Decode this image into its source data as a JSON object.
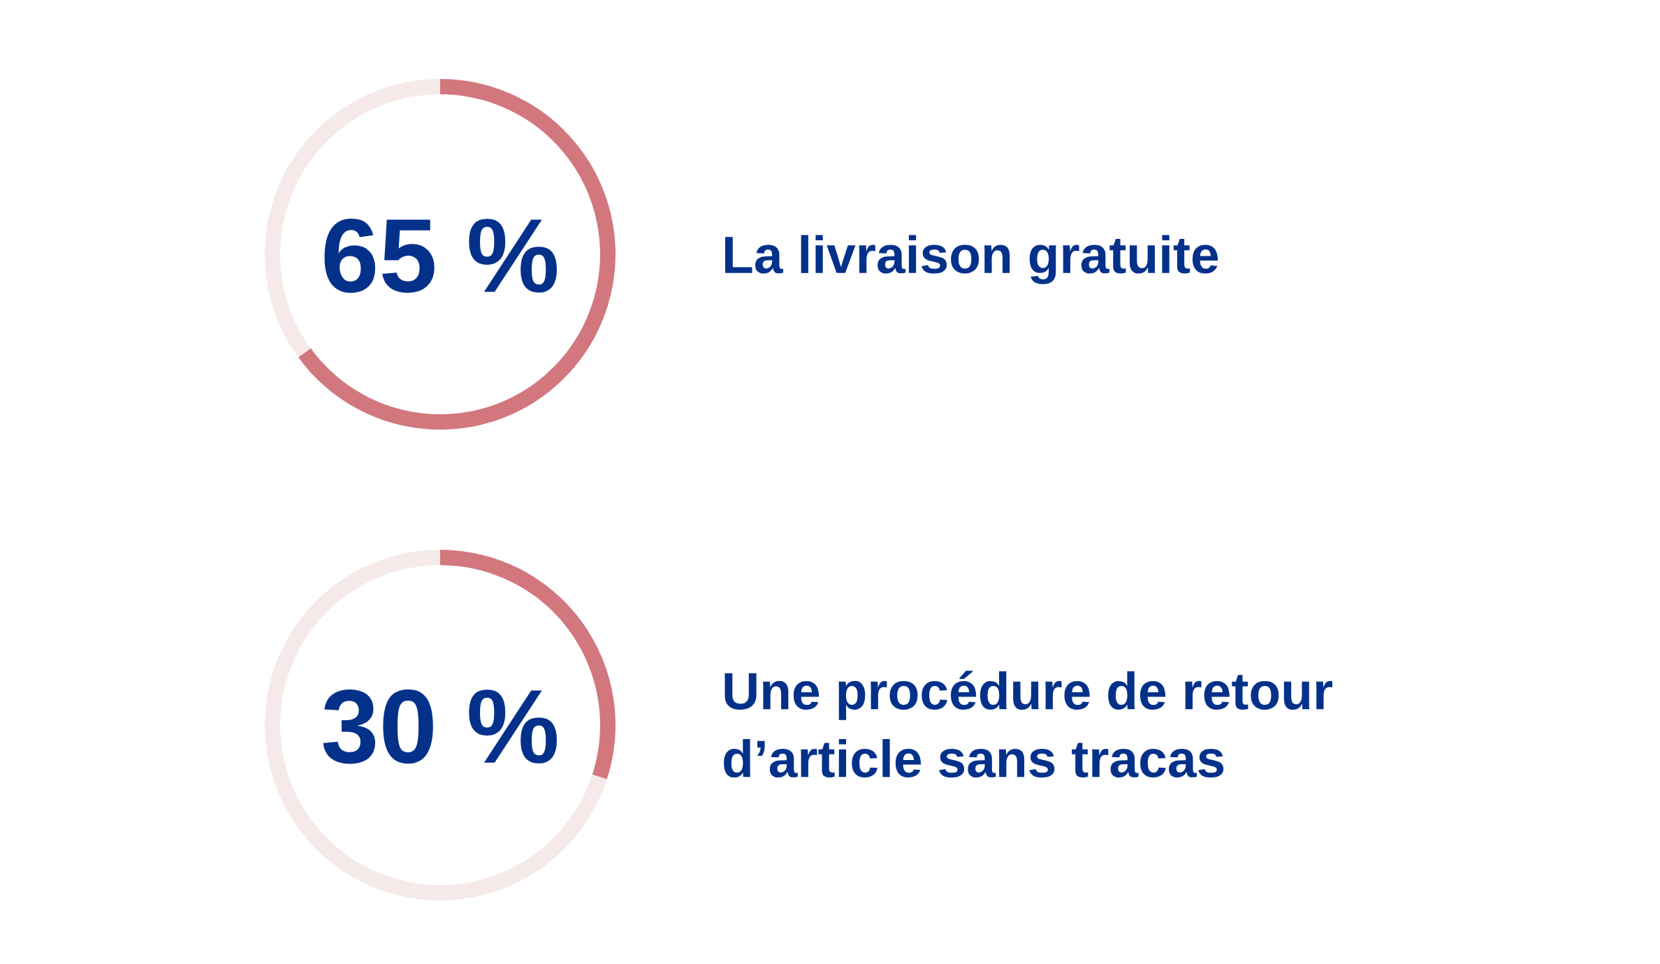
{
  "chart_data": [
    {
      "type": "donut",
      "title": "La livraison gratuite",
      "categories": [
        null,
        null
      ],
      "values": [
        65,
        35
      ],
      "colors": [
        "#d2777e",
        "#f6e9ea"
      ],
      "annotations": [
        "65 %"
      ]
    },
    {
      "type": "donut",
      "title": "Une procédure de retour\nd’article sans tracas",
      "categories": [
        null,
        null
      ],
      "values": [
        30,
        70
      ],
      "colors": [
        "#d2777e",
        "#f6e9ea"
      ],
      "annotations": [
        "30 %"
      ]
    }
  ]
}
